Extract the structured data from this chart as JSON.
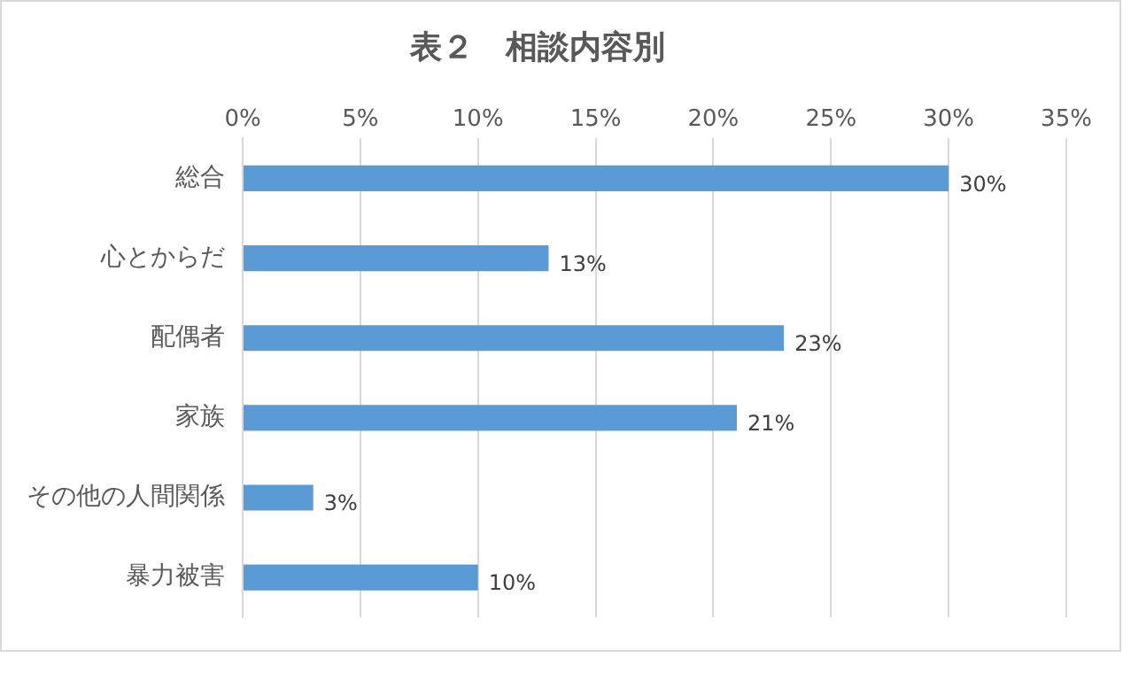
{
  "chart_data": {
    "type": "bar",
    "orientation": "horizontal",
    "title": "表２　相談内容別",
    "categories": [
      "総合",
      "心とからだ",
      "配偶者",
      "家族",
      "その他の人間関係",
      "暴力被害"
    ],
    "values": [
      30,
      13,
      23,
      21,
      3,
      10
    ],
    "value_labels": [
      "30%",
      "13%",
      "23%",
      "21%",
      "3%",
      "10%"
    ],
    "color": "#5b9bd5",
    "xlim": [
      0,
      35
    ],
    "xticks": [
      {
        "value": 0,
        "label": "0%"
      },
      {
        "value": 5,
        "label": "5%"
      },
      {
        "value": 10,
        "label": "10%"
      },
      {
        "value": 15,
        "label": "15%"
      },
      {
        "value": 20,
        "label": "20%"
      },
      {
        "value": 25,
        "label": "25%"
      },
      {
        "value": 30,
        "label": "30%"
      },
      {
        "value": 35,
        "label": "35%"
      }
    ],
    "grid": "x"
  }
}
